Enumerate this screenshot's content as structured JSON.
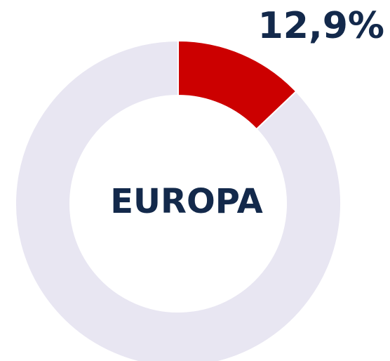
{
  "chart_data": {
    "type": "donut",
    "label": "EUROPA",
    "values": [
      12.9,
      87.1
    ],
    "value_labels": [
      "12,9%",
      null
    ],
    "colors": [
      "#cc0000",
      "#e8e6f2"
    ]
  }
}
